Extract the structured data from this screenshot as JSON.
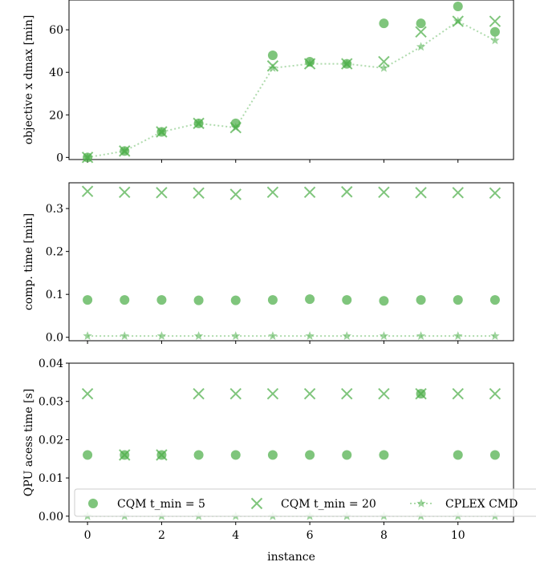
{
  "chart_data": {
    "type": "scatter",
    "colors": {
      "series": "#4daf4a"
    },
    "x": [
      0,
      1,
      2,
      3,
      4,
      5,
      6,
      7,
      8,
      9,
      10,
      11
    ],
    "xlabel": "instance",
    "xticks": [
      "0",
      "2",
      "4",
      "6",
      "8",
      "10"
    ],
    "xlim": [
      -0.5,
      11.5
    ],
    "legend": {
      "placement": "bottom",
      "entries": [
        {
          "label": "CQM t_min = 5",
          "marker": "circle"
        },
        {
          "label": "CQM t_min = 20",
          "marker": "x"
        },
        {
          "label": "CPLEX CMD",
          "marker": "star-dotted-line"
        }
      ]
    },
    "panels": [
      {
        "ylabel": "objective x dmax [min]",
        "ylim": [
          -1,
          74
        ],
        "yticks": [
          "0",
          "20",
          "40",
          "60"
        ],
        "series": [
          {
            "name": "CQM t_min = 5",
            "values": [
              0,
              3,
              12,
              16,
              16,
              48,
              45,
              44,
              63,
              63,
              71,
              59
            ]
          },
          {
            "name": "CQM t_min = 20",
            "values": [
              0,
              3,
              12,
              16,
              14,
              43,
              44,
              44,
              45,
              59,
              64,
              64
            ]
          },
          {
            "name": "CPLEX CMD",
            "values": [
              0,
              3,
              12,
              16,
              14,
              42,
              44,
              44,
              42,
              52,
              64,
              55
            ]
          }
        ]
      },
      {
        "ylabel": "comp. time [min]",
        "ylim": [
          -0.008,
          0.36
        ],
        "yticks": [
          "0.0",
          "0.1",
          "0.2",
          "0.3"
        ],
        "series": [
          {
            "name": "CQM t_min = 5",
            "values": [
              0.087,
              0.087,
              0.087,
              0.086,
              0.086,
              0.087,
              0.089,
              0.087,
              0.085,
              0.087,
              0.087,
              0.087
            ]
          },
          {
            "name": "CQM t_min = 20",
            "values": [
              0.34,
              0.338,
              0.337,
              0.336,
              0.333,
              0.338,
              0.338,
              0.339,
              0.338,
              0.337,
              0.337,
              0.336
            ]
          },
          {
            "name": "CPLEX CMD",
            "values": [
              0.003,
              0.003,
              0.003,
              0.003,
              0.003,
              0.003,
              0.003,
              0.003,
              0.003,
              0.003,
              0.003,
              0.003
            ]
          }
        ]
      },
      {
        "ylabel": "QPU acess time [s]",
        "ylim": [
          -0.0015,
          0.04
        ],
        "yticks": [
          "0.00",
          "0.01",
          "0.02",
          "0.03",
          "0.04"
        ],
        "series": [
          {
            "name": "CQM t_min = 5",
            "values": [
              0.016,
              0.016,
              0.016,
              0.016,
              0.016,
              0.016,
              0.016,
              0.016,
              0.016,
              0.032,
              0.016,
              0.016
            ]
          },
          {
            "name": "CQM t_min = 20",
            "values": [
              0.032,
              0.016,
              0.016,
              0.032,
              0.032,
              0.032,
              0.032,
              0.032,
              0.032,
              0.032,
              0.032,
              0.032
            ]
          },
          {
            "name": "CPLEX CMD",
            "values": [
              0,
              0,
              0,
              0,
              0,
              0,
              0,
              0,
              0,
              0,
              0,
              0
            ]
          }
        ]
      }
    ]
  }
}
